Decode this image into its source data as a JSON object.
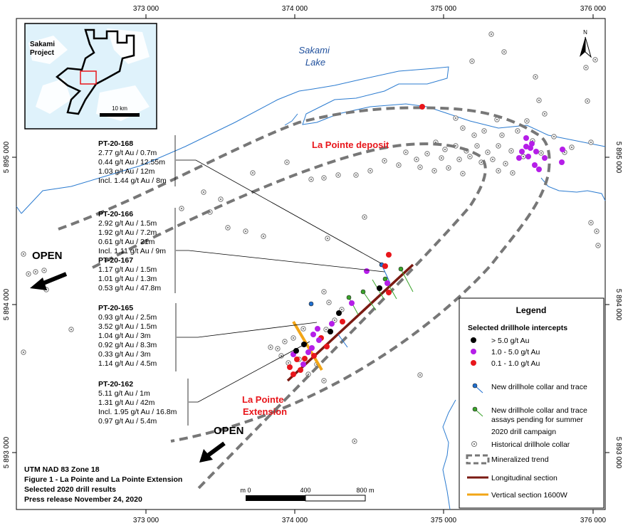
{
  "map": {
    "coords": {
      "top_x": [
        "373 000",
        "374 000",
        "375 000",
        "376 000"
      ],
      "bottom_x": [
        "373 000",
        "374 000",
        "375 000",
        "376 000"
      ],
      "left_y": [
        "5 895 000",
        "5 894 000",
        "5 893 000"
      ],
      "right_y": [
        "5 895 000",
        "5 894 000",
        "5 893 000"
      ]
    },
    "lake_label": [
      "Sakami",
      "Lake"
    ],
    "deposit_label": "La Pointe deposit",
    "extension_label": [
      "La Pointe",
      "Extension"
    ],
    "open_label": "OPEN",
    "north_label": "N",
    "inset": {
      "project_label": [
        "Sakami",
        "Project"
      ],
      "scale_label": "10 km"
    },
    "scalebar": {
      "labels": [
        "m 0",
        "400",
        "800 m"
      ]
    },
    "footer": [
      "UTM NAD 83 Zone 18",
      "Figure 1 - La Pointe and La Pointe Extension",
      "Selected 2020 drill results",
      "Press release November 24, 2020"
    ],
    "colors": {
      "water": "#2b7bd0",
      "trend": "#777777",
      "long_section": "#7a1a12",
      "vert_section": "#f2a516",
      "high": "#000000",
      "mid": "#b51ee8",
      "low": "#e8161b",
      "label_red": "#e8161b"
    }
  },
  "callouts": [
    {
      "hole": "PT-20-168",
      "lines": [
        "2.77 g/t Au / 0.7m",
        "0.44 g/t Au / 12.55m",
        "1.03 g/t Au / 12m",
        "Incl. 1.44 g/t Au / 8m"
      ]
    },
    {
      "hole": "PT-20-166",
      "lines": [
        "2.92 g/t Au / 1.5m",
        "1.92 g/t Au / 7.2m",
        "0.61 g/t Au / 21m",
        "Incl. 1.11 g/t Au / 9m"
      ]
    },
    {
      "hole": "PT-20-167",
      "lines": [
        "1.17 g/t Au / 1.5m",
        "1.01 g/t Au / 1.3m",
        "0.53 g/t Au / 47.8m"
      ]
    },
    {
      "hole": "PT-20-165",
      "lines": [
        "0.93 g/t Au / 2.5m",
        "3.52 g/t Au / 1.5m",
        "1.04 g/t Au / 3m",
        "0.92 g/t Au / 8.3m",
        "0.33 g/t Au / 3m",
        "1.14 g/t Au / 4.5m"
      ]
    },
    {
      "hole": "PT-20-162",
      "lines": [
        "5.11 g/t Au / 1m",
        "1.31 g/t Au / 42m",
        "Incl. 1.95 g/t Au / 16.8m",
        "0.97 g/t Au / 5.4m"
      ]
    }
  ],
  "legend": {
    "title": "Legend",
    "subtitle": "Selected drillhole intercepts",
    "intercepts": [
      {
        "label": "> 5.0 g/t Au",
        "color": "#000000"
      },
      {
        "label": "1.0 - 5.0 g/t Au",
        "color": "#b51ee8"
      },
      {
        "label": "0.1 - 1.0 g/t Au",
        "color": "#e8161b"
      }
    ],
    "new_collar": "New drillhole collar and trace",
    "pending": [
      "New drillhole collar and trace",
      "assays pending for summer",
      "2020 drill campaign"
    ],
    "historical": "Historical drillhole collar",
    "trend": "Mineralized trend",
    "long_section": "Longitudinal section",
    "vert_section": "Vertical section 1600W"
  }
}
